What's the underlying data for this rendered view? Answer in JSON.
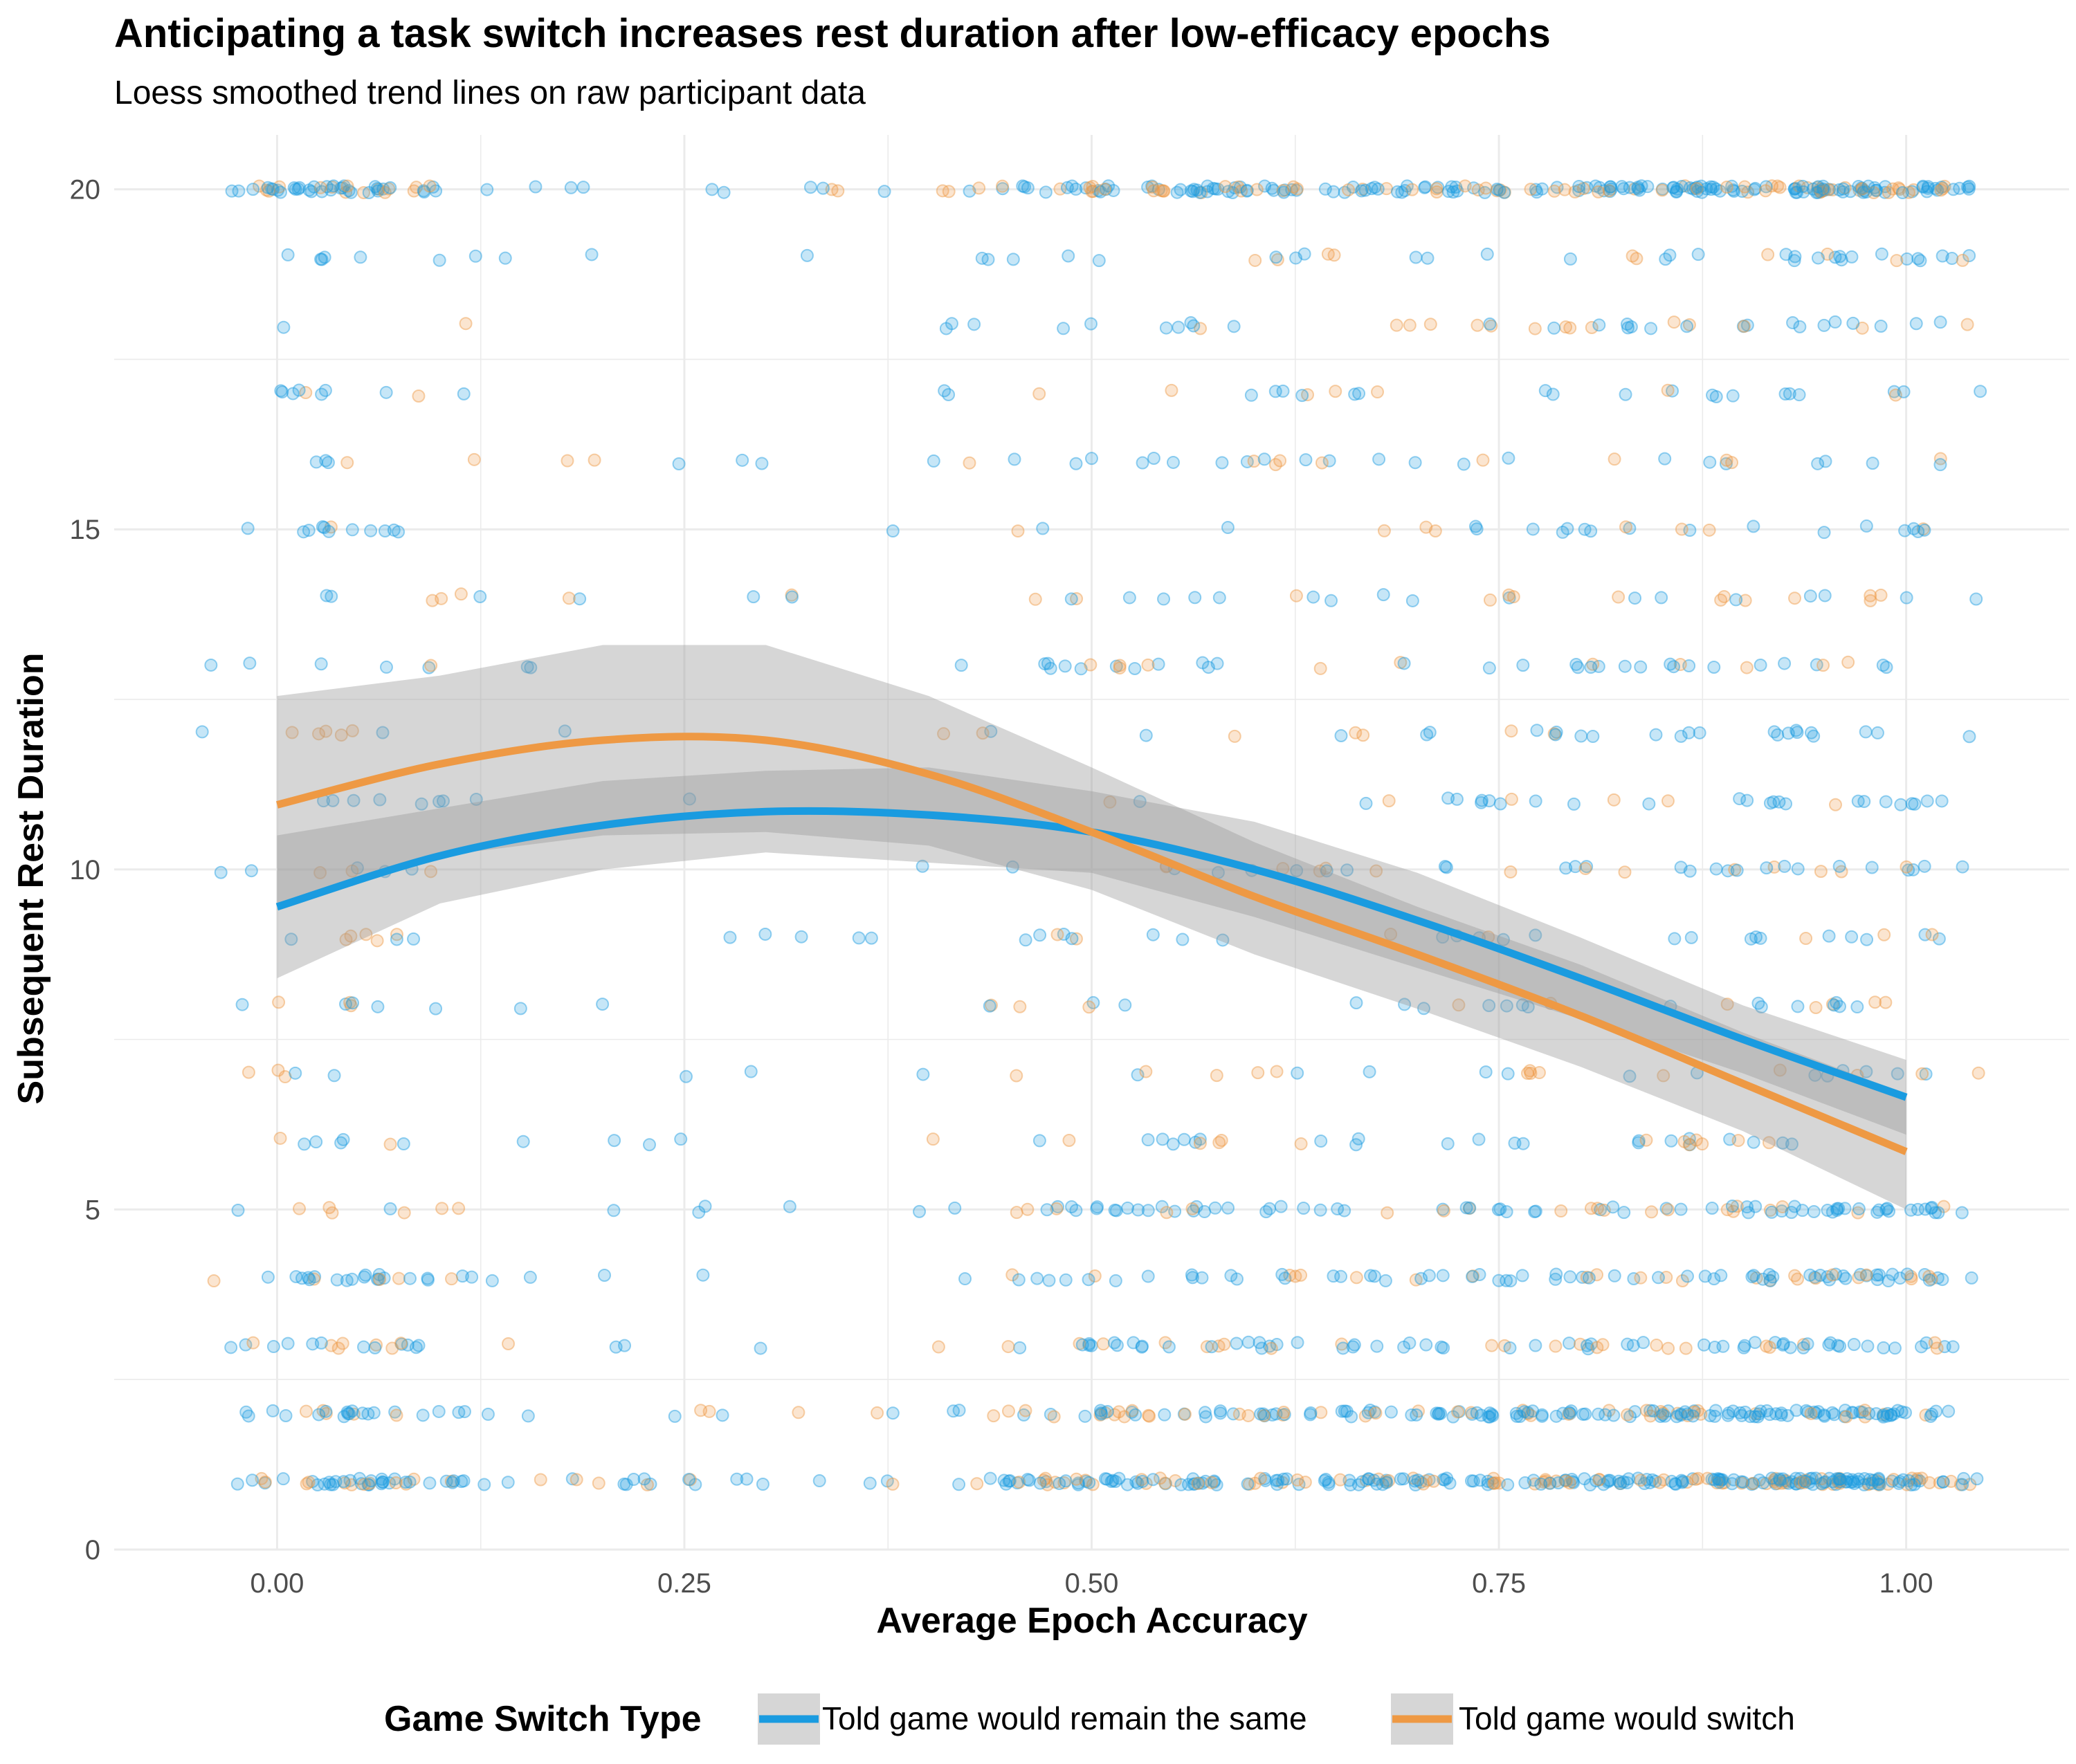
{
  "chart_data": {
    "type": "scatter",
    "title": "Anticipating a task switch increases rest duration after low-efficacy epochs",
    "subtitle": "Loess smoothed trend lines on raw participant data",
    "xlabel": "Average Epoch Accuracy",
    "ylabel": "Subsequent Rest Duration",
    "xlim": [
      -0.1,
      1.1
    ],
    "ylim": [
      0,
      20.8
    ],
    "x_ticks": [
      "0.00",
      "0.25",
      "0.50",
      "0.75",
      "1.00"
    ],
    "x_tick_values": [
      0,
      0.25,
      0.5,
      0.75,
      1.0
    ],
    "y_ticks": [
      "0",
      "5",
      "10",
      "15",
      "20"
    ],
    "y_tick_values": [
      0,
      5,
      10,
      15,
      20
    ],
    "grid": true,
    "legend": {
      "title": "Game Switch Type",
      "position": "bottom"
    },
    "colors": {
      "same": "#1a9be0",
      "switch": "#ee9944",
      "ribbon": "#999999",
      "grid": "#ebebeb"
    },
    "smooth_lines": [
      {
        "name": "Told game would remain the same",
        "x": [
          0,
          0.1,
          0.2,
          0.3,
          0.4,
          0.5,
          0.6,
          0.7,
          0.8,
          0.9,
          1.0
        ],
        "y": [
          9.45,
          10.2,
          10.65,
          10.85,
          10.8,
          10.55,
          10.0,
          9.25,
          8.4,
          7.5,
          6.65
        ],
        "ci_lower": [
          8.4,
          9.5,
          10.0,
          10.25,
          10.1,
          9.95,
          9.3,
          8.55,
          7.8,
          7.0,
          6.1
        ],
        "ci_upper": [
          10.5,
          10.9,
          11.3,
          11.45,
          11.5,
          11.15,
          10.7,
          9.95,
          9.0,
          8.0,
          7.2
        ]
      },
      {
        "name": "Told game would switch",
        "x": [
          0,
          0.1,
          0.2,
          0.3,
          0.4,
          0.5,
          0.6,
          0.7,
          0.8,
          0.9,
          1.0
        ],
        "y": [
          10.95,
          11.55,
          11.9,
          11.9,
          11.4,
          10.55,
          9.6,
          8.75,
          7.85,
          6.85,
          5.85
        ],
        "ci_lower": [
          9.4,
          10.2,
          10.5,
          10.55,
          10.35,
          9.7,
          8.75,
          7.95,
          7.1,
          6.15,
          5.0
        ],
        "ci_upper": [
          12.55,
          12.85,
          13.3,
          13.3,
          12.55,
          11.5,
          10.4,
          9.45,
          8.6,
          7.6,
          6.7
        ]
      }
    ],
    "points_note_values": [
      1,
      2,
      3,
      4,
      5,
      6,
      7,
      8,
      9,
      10,
      11,
      12,
      13,
      14,
      15,
      16,
      17,
      18,
      19,
      20
    ]
  }
}
